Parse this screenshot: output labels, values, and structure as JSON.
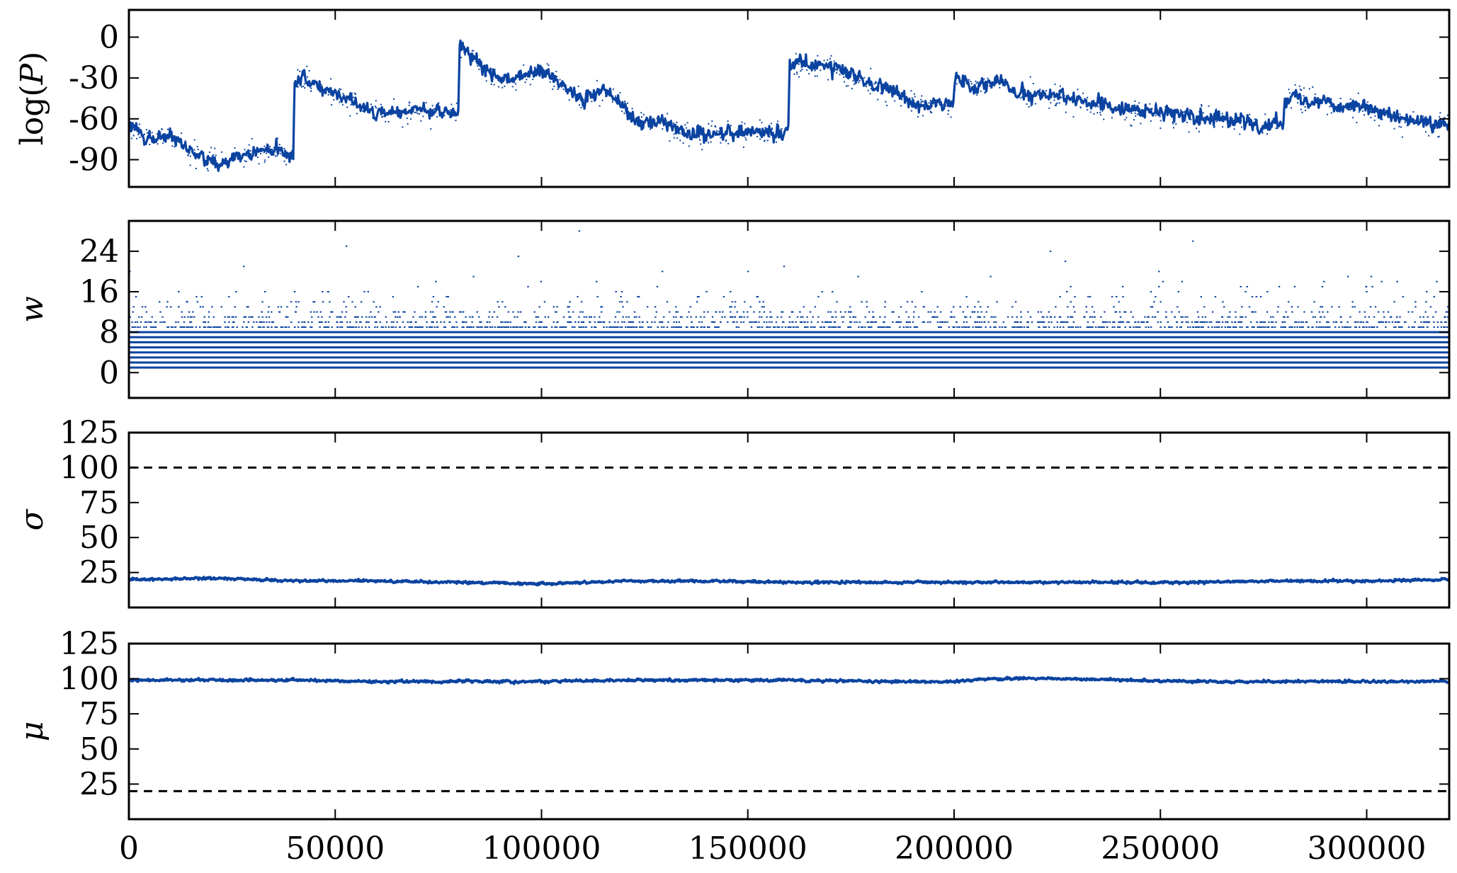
{
  "chart_data": [
    {
      "type": "scatter",
      "ylabel": "log(P)",
      "ylabel_parts": {
        "fn": "log",
        "open": "(",
        "var": "P",
        "close": ")"
      },
      "xlim": [
        0,
        320000
      ],
      "ylim": [
        -110,
        20
      ],
      "yticks": [
        0,
        -30,
        -60,
        -90
      ],
      "ytick_labels": [
        "0",
        "-30",
        "-60",
        "-90"
      ],
      "show_xtick_labels": false,
      "series": [
        {
          "color": "#0b43a0",
          "style": "noisy-trace",
          "x": [
            0,
            2000,
            5000,
            10000,
            15000,
            20000,
            25000,
            30000,
            35000,
            39900,
            40100,
            45000,
            50000,
            55000,
            60000,
            65000,
            70000,
            75000,
            79900,
            80100,
            85000,
            90000,
            95000,
            100000,
            105000,
            110000,
            115000,
            120000,
            125000,
            130000,
            135000,
            140000,
            145000,
            150000,
            155000,
            159900,
            160100,
            165000,
            170000,
            175000,
            180000,
            185000,
            190000,
            195000,
            199900,
            200100,
            205000,
            210000,
            215000,
            220000,
            225000,
            230000,
            235000,
            240000,
            245000,
            250000,
            255000,
            260000,
            265000,
            270000,
            275000,
            279900,
            280100,
            285000,
            290000,
            295000,
            300000,
            305000,
            310000,
            315000,
            320000
          ],
          "y": [
            -65,
            -70,
            -75,
            -73,
            -85,
            -92,
            -88,
            -85,
            -83,
            -85,
            -30,
            -35,
            -42,
            -48,
            -55,
            -57,
            -52,
            -55,
            -55,
            -5,
            -20,
            -32,
            -28,
            -25,
            -35,
            -45,
            -38,
            -52,
            -65,
            -62,
            -70,
            -72,
            -70,
            -68,
            -70,
            -68,
            -18,
            -22,
            -20,
            -28,
            -35,
            -40,
            -48,
            -50,
            -50,
            -30,
            -35,
            -32,
            -40,
            -42,
            -45,
            -45,
            -50,
            -52,
            -55,
            -55,
            -55,
            -58,
            -60,
            -62,
            -65,
            -62,
            -42,
            -45,
            -48,
            -50,
            -52,
            -58,
            -62,
            -63,
            -65
          ]
        }
      ]
    },
    {
      "type": "scatter",
      "ylabel": "w",
      "xlim": [
        0,
        320000
      ],
      "ylim": [
        -5,
        30
      ],
      "yticks": [
        0,
        8,
        16,
        24
      ],
      "ytick_labels": [
        "0",
        "8",
        "16",
        "24"
      ],
      "show_xtick_labels": false,
      "levels_solid_max": 8,
      "level_fill": {
        "1": 1.0,
        "2": 1.0,
        "3": 1.0,
        "4": 1.0,
        "5": 1.0,
        "6": 1.0,
        "7": 1.0,
        "8": 0.95,
        "9": 0.75,
        "10": 0.5,
        "11": 0.3,
        "12": 0.18,
        "13": 0.1,
        "14": 0.06,
        "15": 0.04,
        "16": 0.025,
        "17": 0.015,
        "18": 0.01,
        "19": 0.006,
        "20": 0.004,
        "21": 0.002,
        "22": 0.001,
        "23": 0.0008,
        "24": 0.0006,
        "25": 0.0004,
        "26": 0.0003,
        "28": 0.0001
      },
      "series": [
        {
          "color": "#0b43a0",
          "style": "discrete-levels"
        }
      ]
    },
    {
      "type": "line",
      "ylabel": "σ",
      "xlim": [
        0,
        320000
      ],
      "ylim": [
        0,
        125
      ],
      "yticks": [
        25,
        50,
        75,
        100,
        125
      ],
      "ytick_labels": [
        "25",
        "50",
        "75",
        "100",
        "125"
      ],
      "show_xtick_labels": false,
      "reference_line": {
        "y": 100,
        "style": "dashed",
        "color": "#000000"
      },
      "series": [
        {
          "color": "#0b43a0",
          "style": "noisy-trace",
          "x": [
            0,
            20000,
            40000,
            60000,
            80000,
            100000,
            120000,
            140000,
            160000,
            180000,
            200000,
            220000,
            240000,
            260000,
            280000,
            300000,
            320000
          ],
          "y": [
            20,
            21,
            19,
            19,
            18,
            17,
            19,
            19,
            18,
            18,
            18,
            18,
            18,
            18,
            19,
            19,
            20
          ]
        }
      ]
    },
    {
      "type": "line",
      "ylabel": "μ",
      "xlim": [
        0,
        320000
      ],
      "ylim": [
        0,
        125
      ],
      "yticks": [
        25,
        50,
        75,
        100,
        125
      ],
      "ytick_labels": [
        "25",
        "50",
        "75",
        "100",
        "125"
      ],
      "xticks": [
        0,
        50000,
        100000,
        150000,
        200000,
        250000,
        300000
      ],
      "xtick_labels": [
        "0",
        "50000",
        "100000",
        "150000",
        "200000",
        "250000",
        "300000"
      ],
      "show_xtick_labels": true,
      "reference_line": {
        "y": 20,
        "style": "dashed",
        "color": "#000000"
      },
      "series": [
        {
          "color": "#0b43a0",
          "style": "noisy-trace",
          "x": [
            0,
            20000,
            40000,
            60000,
            80000,
            100000,
            120000,
            140000,
            160000,
            180000,
            200000,
            210000,
            220000,
            230000,
            240000,
            260000,
            280000,
            300000,
            320000
          ],
          "y": [
            99,
            99,
            99,
            98,
            98,
            98,
            99,
            99,
            99,
            98,
            98,
            100,
            100,
            100,
            99,
            98,
            98,
            98,
            98
          ]
        }
      ]
    }
  ]
}
